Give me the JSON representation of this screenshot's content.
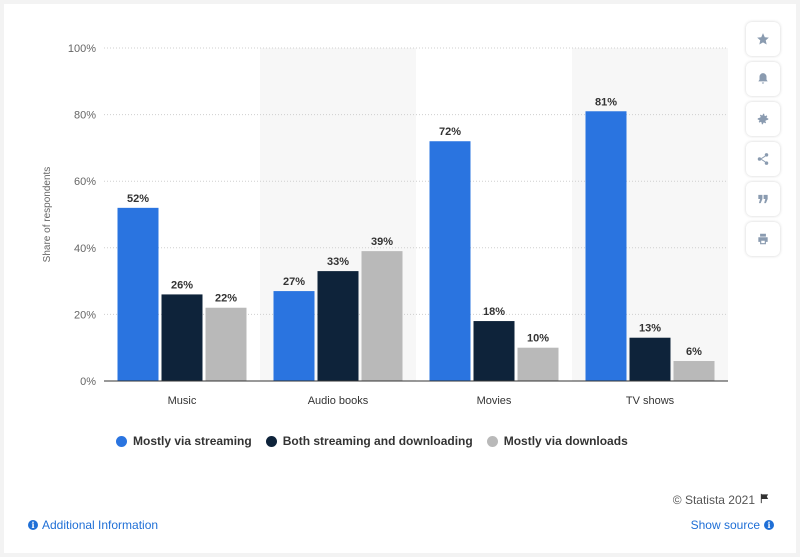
{
  "chart_data": {
    "type": "bar",
    "categories": [
      "Music",
      "Audio books",
      "Movies",
      "TV shows"
    ],
    "series": [
      {
        "name": "Mostly via streaming",
        "values": [
          52,
          27,
          72,
          81
        ],
        "color": "#2a74e0"
      },
      {
        "name": "Both streaming and downloading",
        "values": [
          26,
          33,
          18,
          13
        ],
        "color": "#0e233a"
      },
      {
        "name": "Mostly via downloads",
        "values": [
          22,
          39,
          10,
          6
        ],
        "color": "#b9b9b9"
      }
    ],
    "ylabel": "Share of respondents",
    "ylim": [
      0,
      100
    ],
    "yticks": [
      "0%",
      "20%",
      "40%",
      "60%",
      "80%",
      "100%"
    ],
    "yticks_values": [
      0,
      20,
      40,
      60,
      80,
      100
    ],
    "value_suffix": "%",
    "grid": true,
    "legend_position": "bottom-left"
  },
  "footer": {
    "credit": "© Statista 2021",
    "additional_info": "Additional Information",
    "show_source": "Show source"
  },
  "toolbar": {
    "icons": [
      "star-icon",
      "bell-icon",
      "gear-icon",
      "share-icon",
      "quote-icon",
      "print-icon"
    ]
  }
}
